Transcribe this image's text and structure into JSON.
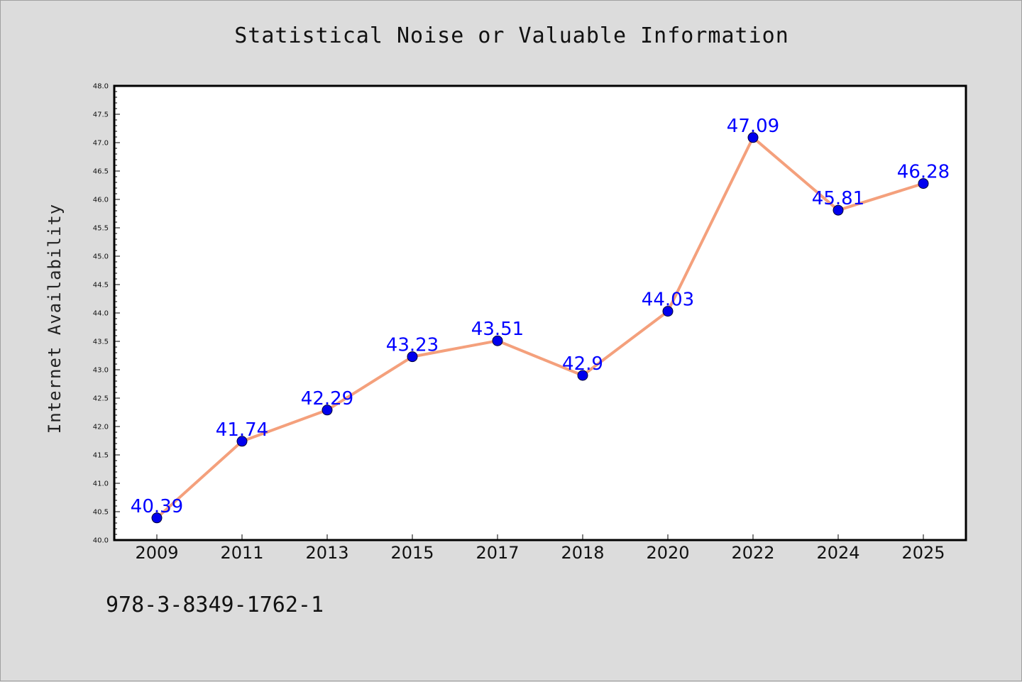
{
  "chart_data": {
    "type": "line",
    "title": "Statistical Noise or Valuable Information",
    "xlabel": "",
    "ylabel": "Internet Availability",
    "categories": [
      "2009",
      "2011",
      "2013",
      "2015",
      "2017",
      "2018",
      "2020",
      "2022",
      "2024",
      "2025"
    ],
    "series": [
      {
        "values": [
          40.39,
          41.74,
          42.29,
          43.23,
          43.51,
          42.9,
          44.03,
          47.09,
          45.81,
          46.28
        ],
        "data_labels": [
          "40.39",
          "41.74",
          "42.29",
          "43.23",
          "43.51",
          "42.9",
          "44.03",
          "47.09",
          "45.81",
          "46.28"
        ],
        "line_color": "#f4a07c",
        "marker_color": "#0000ee",
        "label_color": "#0000ff"
      }
    ],
    "ylim": [
      40.0,
      48.0
    ],
    "ytick_labels": [
      "40.0",
      "40.5",
      "41.0",
      "41.5",
      "42.0",
      "42.5",
      "43.0",
      "43.5",
      "44.0",
      "44.5",
      "45.0",
      "45.5",
      "46.0",
      "46.5",
      "47.0",
      "47.5",
      "48.0"
    ],
    "grid": false,
    "legend": "none"
  },
  "footer_text": "978-3-8349-1762-1",
  "colors": {
    "background": "#dcdcdc",
    "plot_background": "#ffffff",
    "axis": "#000000"
  }
}
